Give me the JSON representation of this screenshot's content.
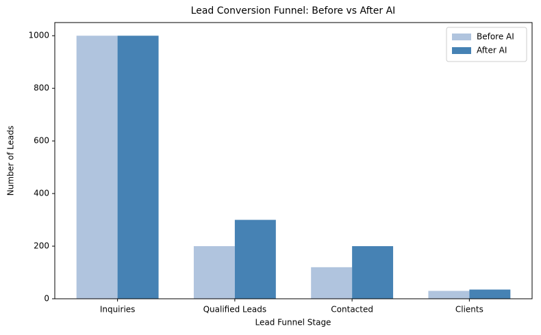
{
  "chart_data": {
    "type": "bar",
    "title": "Lead Conversion Funnel: Before vs After AI",
    "x_label": "Lead Funnel Stage",
    "y_label": "Number of Leads",
    "categories": [
      "Inquiries",
      "Qualified Leads",
      "Contacted",
      "Clients"
    ],
    "series": [
      {
        "name": "Before AI",
        "color": "#b0c4de",
        "values": [
          1000,
          200,
          120,
          30
        ]
      },
      {
        "name": "After AI",
        "color": "#4682b4",
        "values": [
          1000,
          300,
          200,
          35
        ]
      }
    ],
    "ylim": [
      0,
      1050
    ],
    "yticks": [
      0,
      200,
      400,
      600,
      800,
      1000
    ],
    "legend": "upper right"
  }
}
